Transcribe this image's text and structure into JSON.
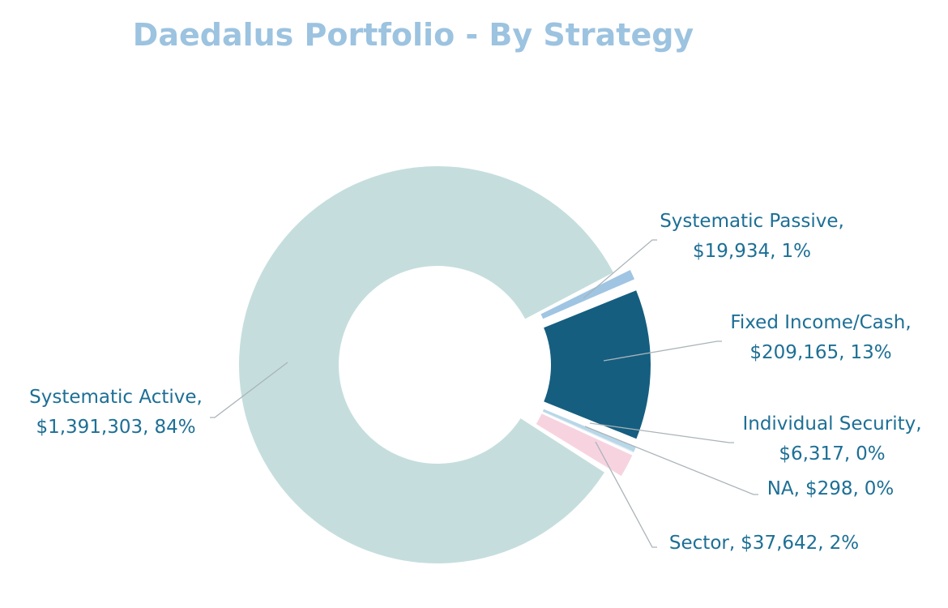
{
  "chart_data": {
    "type": "donut",
    "title": "Daedalus  Portfolio - By Strategy",
    "categories": [
      "Systematic Passive,",
      "Fixed Income/Cash,",
      "Individual Security,",
      "NA,",
      "Sector,",
      "Systematic Active,"
    ],
    "values": [
      19934,
      209165,
      6317,
      298,
      37642,
      1391303
    ],
    "value_labels": [
      "$19,934,",
      "$209,165,",
      "$6,317,",
      "$298,",
      "$37,642,",
      "$1,391,303,"
    ],
    "shares": [
      1,
      13,
      0,
      0,
      2,
      84
    ],
    "share_labels": [
      "1%",
      "13%",
      "0%",
      "0%",
      "2%",
      "84%"
    ],
    "colors": [
      "#9fc5e3",
      "#155e80",
      "#b8d7e8",
      "#d9e6ee",
      "#f7d3e0",
      "#c5dedd"
    ]
  }
}
